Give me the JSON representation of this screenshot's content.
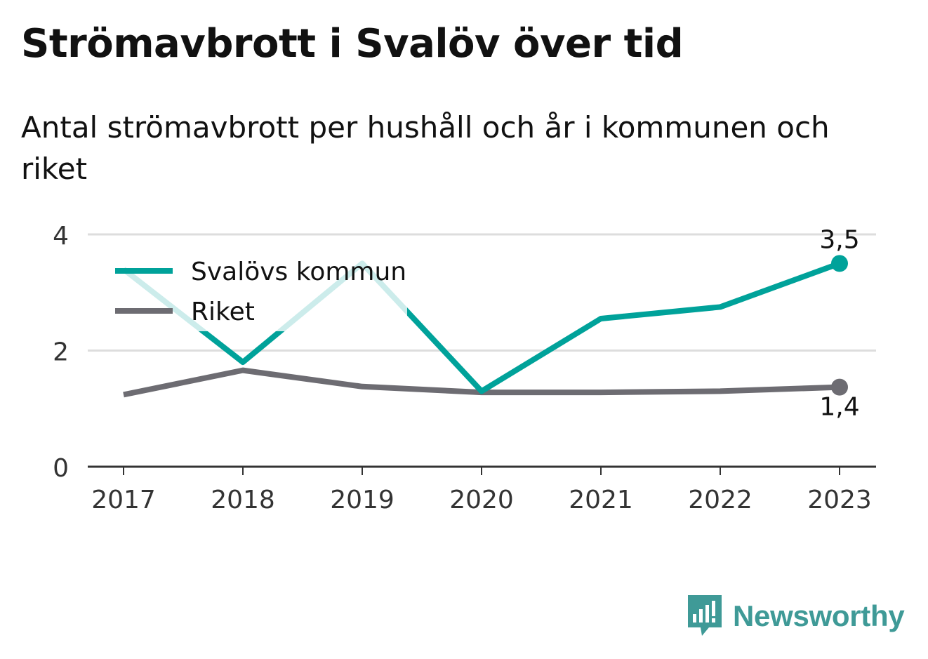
{
  "title": "Strömavbrott i Svalöv över tid",
  "subtitle": "Antal strömavbrott per hushåll och år i kommunen och riket",
  "brand": "Newsworthy",
  "colors": {
    "svalov": "#00a29a",
    "riket": "#6d6c72",
    "grid": "#dddddd",
    "axis": "#333333"
  },
  "chart_data": {
    "type": "line",
    "x": [
      "2017",
      "2018",
      "2019",
      "2020",
      "2021",
      "2022",
      "2023"
    ],
    "ylim": [
      0,
      4
    ],
    "yticks": [
      0,
      2,
      4
    ],
    "grid": true,
    "legend": "top-left",
    "series": [
      {
        "name": "Svalövs kommun",
        "color": "#00a29a",
        "values": [
          3.4,
          1.8,
          3.5,
          1.3,
          2.55,
          2.75,
          3.5
        ],
        "end_label": "3,5"
      },
      {
        "name": "Riket",
        "color": "#6d6c72",
        "values": [
          1.24,
          1.66,
          1.38,
          1.28,
          1.28,
          1.3,
          1.37
        ],
        "end_label": "1,4"
      }
    ]
  }
}
